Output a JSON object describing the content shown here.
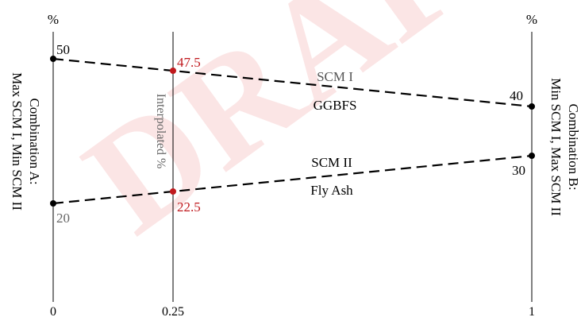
{
  "watermark": "DRAFT",
  "axes": {
    "left_unit": "%",
    "right_unit": "%",
    "left_title_line1": "Combination A:",
    "left_title_line2": "Max SCM I, Min SCM II",
    "right_title_line1": "Combination B:",
    "right_title_line2": "Min SCM I, Max SCM II",
    "interpolated_label": "Interpolated %"
  },
  "x_ticks": [
    "0",
    "0.25",
    "1"
  ],
  "lines": {
    "scm1": {
      "name": "SCM I",
      "material": "GGBFS",
      "start": 50,
      "end": 40,
      "start_label": "50",
      "end_label": "40"
    },
    "scm2": {
      "name": "SCM II",
      "material": "Fly Ash",
      "start": 20,
      "end": 30,
      "start_label": "20",
      "end_label": "30"
    }
  },
  "interpolated": {
    "x": 0.25,
    "scm1_label": "47.5",
    "scm2_label": "22.5"
  },
  "colors": {
    "line": "#000000",
    "interpolated": "#c0191d",
    "gray_label": "#666666",
    "watermark": "#fbe5e5"
  }
}
